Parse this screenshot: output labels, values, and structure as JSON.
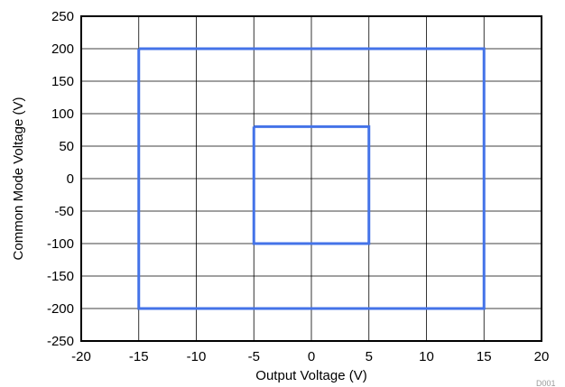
{
  "chart_data": {
    "type": "line",
    "xlabel": "Output Voltage (V)",
    "ylabel": "Common Mode Voltage (V)",
    "xlim": [
      -20,
      20
    ],
    "ylim": [
      -250,
      250
    ],
    "x_ticks": [
      -20,
      -15,
      -10,
      -5,
      0,
      5,
      10,
      15,
      20
    ],
    "y_ticks": [
      -250,
      -200,
      -150,
      -100,
      -50,
      0,
      50,
      100,
      150,
      200,
      250
    ],
    "grid": true,
    "series_color": "#4473e8",
    "series": [
      {
        "x": [
          -15,
          15,
          15,
          -15,
          -15
        ],
        "y": [
          200,
          200,
          -200,
          -200,
          200
        ]
      },
      {
        "x": [
          -5,
          5,
          5,
          -5,
          -5
        ],
        "y": [
          80,
          80,
          -100,
          -100,
          80
        ]
      }
    ],
    "watermark": "D001"
  }
}
